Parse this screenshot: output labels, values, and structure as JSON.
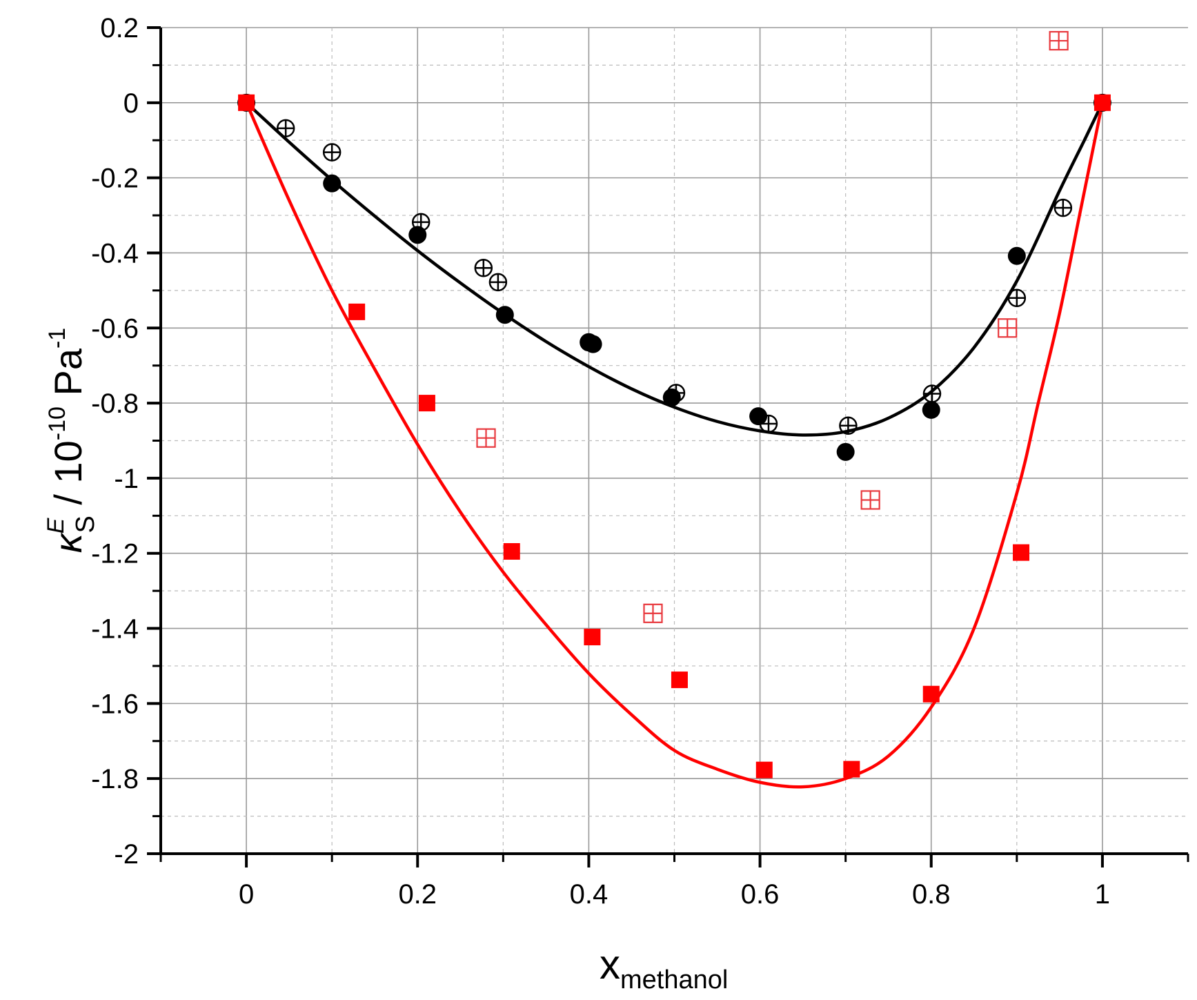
{
  "chart_data": {
    "type": "scatter",
    "xlabel": {
      "main": "x",
      "sub": "methanol"
    },
    "ylabel": {
      "kappa": "κ",
      "sup": "E",
      "sub": "S",
      "rest": " / 10",
      "exp": "-10",
      "unit": " Pa",
      "unit_exp": "-1"
    },
    "xlim": [
      -0.1,
      1.1
    ],
    "ylim": [
      -2,
      0.2
    ],
    "x_ticks": [
      0,
      0.2,
      0.4,
      0.6,
      0.8,
      1
    ],
    "x_tick_labels": [
      "0",
      "0.2",
      "0.4",
      "0.6",
      "0.8",
      "1"
    ],
    "y_ticks": [
      0.2,
      0,
      -0.2,
      -0.4,
      -0.6,
      -0.8,
      -1,
      -1.2,
      -1.4,
      -1.6,
      -1.8,
      -2
    ],
    "y_tick_labels": [
      "0.2",
      "0",
      "-0.2",
      "-0.4",
      "-0.6",
      "-0.8",
      "-1",
      "-1.2",
      "-1.4",
      "-1.6",
      "-1.8",
      "-2"
    ],
    "grid": true,
    "colors": {
      "black": "#000000",
      "red": "#ff0000",
      "red_open": "#e8383d",
      "grid": "#999999"
    },
    "series": [
      {
        "marker": "filled-circle",
        "color": "#000000",
        "x": [
          0,
          0.1,
          0.2,
          0.302,
          0.4,
          0.405,
          0.497,
          0.598,
          0.7,
          0.8,
          0.9,
          1
        ],
        "y": [
          0,
          -0.215,
          -0.352,
          -0.565,
          -0.638,
          -0.643,
          -0.785,
          -0.835,
          -0.93,
          -0.818,
          -0.408,
          0
        ]
      },
      {
        "marker": "circle-plus",
        "color": "#000000",
        "x": [
          0.046,
          0.1,
          0.204,
          0.277,
          0.294,
          0.4,
          0.502,
          0.61,
          0.703,
          0.801,
          0.9,
          0.954
        ],
        "y": [
          -0.068,
          -0.132,
          -0.318,
          -0.44,
          -0.478,
          -0.638,
          -0.773,
          -0.855,
          -0.86,
          -0.775,
          -0.52,
          -0.28
        ]
      },
      {
        "marker": "filled-square",
        "color": "#ff0000",
        "x": [
          0,
          0.129,
          0.211,
          0.31,
          0.404,
          0.506,
          0.605,
          0.707,
          0.8,
          0.905,
          1
        ],
        "y": [
          0,
          -0.557,
          -0.8,
          -1.195,
          -1.423,
          -1.537,
          -1.777,
          -1.775,
          -1.575,
          -1.198,
          0
        ]
      },
      {
        "marker": "square-plus",
        "color": "#e8383d",
        "x": [
          0.28,
          0.475,
          0.729,
          0.889,
          0.949
        ],
        "y": [
          -0.893,
          -1.36,
          -1.058,
          -0.6,
          0.165
        ]
      }
    ],
    "curves": [
      {
        "color": "#000000",
        "x": [
          0,
          0.05,
          0.1,
          0.15,
          0.2,
          0.25,
          0.3,
          0.35,
          0.4,
          0.45,
          0.5,
          0.55,
          0.6,
          0.65,
          0.7,
          0.75,
          0.8,
          0.85,
          0.9,
          0.95,
          0.98,
          1
        ],
        "y": [
          0,
          -0.105,
          -0.206,
          -0.302,
          -0.394,
          -0.48,
          -0.561,
          -0.636,
          -0.703,
          -0.762,
          -0.811,
          -0.849,
          -0.874,
          -0.885,
          -0.876,
          -0.84,
          -0.77,
          -0.652,
          -0.475,
          -0.234,
          -0.095,
          0
        ]
      },
      {
        "color": "#ff0000",
        "x": [
          0,
          0.05,
          0.1,
          0.15,
          0.2,
          0.25,
          0.3,
          0.35,
          0.4,
          0.45,
          0.5,
          0.55,
          0.6,
          0.65,
          0.7,
          0.75,
          0.8,
          0.85,
          0.9,
          0.925,
          0.95,
          0.975,
          1
        ],
        "y": [
          0,
          -0.26,
          -0.5,
          -0.71,
          -0.91,
          -1.09,
          -1.25,
          -1.39,
          -1.52,
          -1.63,
          -1.725,
          -1.775,
          -1.81,
          -1.822,
          -1.8,
          -1.74,
          -1.61,
          -1.4,
          -1.04,
          -0.8,
          -0.56,
          -0.28,
          0
        ]
      }
    ]
  }
}
